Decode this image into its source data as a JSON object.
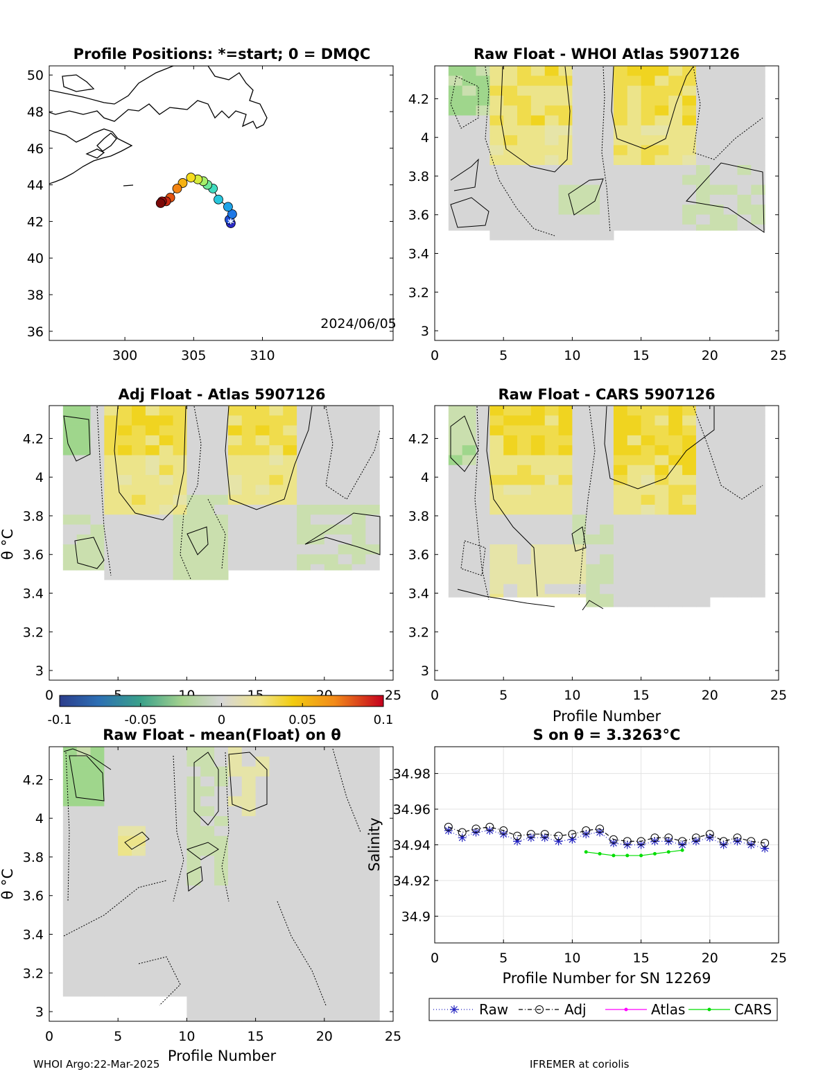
{
  "page": {
    "footer_left": "WHOI Argo:22-Mar-2025",
    "footer_right": "IFREMER at coriolis",
    "xlabel_common": "Profile Number",
    "theta_label": "θ °C"
  },
  "map": {
    "title": "Profile Positions: *=start; 0 = DMQC",
    "date": "2024/06/05",
    "xticks": [
      "300",
      "305",
      "310"
    ],
    "yticks": [
      "36",
      "38",
      "40",
      "42",
      "44",
      "46",
      "48",
      "50"
    ],
    "xlim": [
      294.5,
      319.5
    ],
    "ylim": [
      35.5,
      50.5
    ],
    "track": [
      {
        "lon": 307.7,
        "lat": 41.9
      },
      {
        "lon": 307.6,
        "lat": 42.1
      },
      {
        "lon": 307.8,
        "lat": 42.4
      },
      {
        "lon": 307.5,
        "lat": 42.8
      },
      {
        "lon": 306.8,
        "lat": 43.2
      },
      {
        "lon": 306.4,
        "lat": 43.8
      },
      {
        "lon": 306.0,
        "lat": 44.0
      },
      {
        "lon": 305.7,
        "lat": 44.2
      },
      {
        "lon": 305.3,
        "lat": 44.3
      },
      {
        "lon": 304.8,
        "lat": 44.4
      },
      {
        "lon": 304.2,
        "lat": 44.1
      },
      {
        "lon": 303.8,
        "lat": 43.8
      },
      {
        "lon": 303.3,
        "lat": 43.3
      },
      {
        "lon": 303.0,
        "lat": 43.1
      },
      {
        "lon": 302.7,
        "lat": 43.1
      },
      {
        "lon": 302.6,
        "lat": 43.0
      }
    ]
  },
  "panels": {
    "p2": {
      "title": "Raw Float - WHOI Atlas  5907126",
      "xlabel": "",
      "ylabel": ""
    },
    "p3": {
      "title": "Adj Float - Atlas  5907126",
      "xlabel": "",
      "ylabel": "θ °C"
    },
    "p4": {
      "title": "Raw Float - CARS  5907126",
      "xlabel": "Profile Number",
      "ylabel": ""
    },
    "p5": {
      "title": "Raw Float - mean(Float) on θ",
      "xlabel": "Profile Number",
      "ylabel": "θ °C"
    },
    "p6": {
      "title": "S on θ = 3.3263°C",
      "xlabel": "Profile Number for SN 12269",
      "ylabel": "Salinity"
    }
  },
  "contour_axes": {
    "xticks": [
      "0",
      "5",
      "10",
      "15",
      "20",
      "25"
    ],
    "yticks": [
      "3",
      "3.2",
      "3.4",
      "3.6",
      "3.8",
      "4",
      "4.2"
    ],
    "xlim": [
      0,
      25
    ],
    "ylim": [
      2.95,
      4.37
    ]
  },
  "colorbar": {
    "ticks": [
      "-0.1",
      "-0.05",
      "0",
      "0.05",
      "0.1"
    ],
    "range": [
      -0.1,
      0.1
    ]
  },
  "legend": {
    "items": [
      {
        "label": "Raw",
        "color": "#1f1fbf"
      },
      {
        "label": "Adj",
        "color": "#000000"
      },
      {
        "label": "Atlas",
        "color": "#ff00ff"
      },
      {
        "label": "CARS",
        "color": "#00dd00"
      }
    ]
  },
  "chart_data": {
    "type": "line",
    "title": "S on θ = 3.3263°C",
    "xlabel": "Profile Number for SN 12269",
    "ylabel": "Salinity",
    "xlim": [
      0,
      25
    ],
    "ylim": [
      34.885,
      34.995
    ],
    "xticks": [
      "0",
      "5",
      "10",
      "15",
      "20",
      "25"
    ],
    "yticks": [
      "34.9",
      "34.92",
      "34.94",
      "34.96",
      "34.98"
    ],
    "grid": true,
    "legend_position": "bottom",
    "series": [
      {
        "name": "Raw",
        "x": [
          1,
          2,
          3,
          4,
          5,
          6,
          7,
          8,
          9,
          10,
          11,
          12,
          13,
          14,
          15,
          16,
          17,
          18,
          19,
          20,
          21,
          22,
          23,
          24
        ],
        "values": [
          34.948,
          34.944,
          34.947,
          34.948,
          34.946,
          34.942,
          34.944,
          34.944,
          34.942,
          34.943,
          34.946,
          34.947,
          34.941,
          34.94,
          34.94,
          34.942,
          34.942,
          34.94,
          34.942,
          34.944,
          34.94,
          34.942,
          34.94,
          34.938
        ]
      },
      {
        "name": "Adj",
        "x": [
          1,
          2,
          3,
          4,
          5,
          6,
          7,
          8,
          9,
          10,
          11,
          12,
          13,
          14,
          15,
          16,
          17,
          18,
          19,
          20,
          21,
          22,
          23,
          24
        ],
        "values": [
          34.95,
          34.947,
          34.949,
          34.95,
          34.948,
          34.945,
          34.946,
          34.946,
          34.945,
          34.946,
          34.948,
          34.949,
          34.943,
          34.942,
          34.942,
          34.944,
          34.944,
          34.942,
          34.944,
          34.946,
          34.942,
          34.944,
          34.942,
          34.941
        ]
      },
      {
        "name": "Atlas",
        "x": [],
        "values": []
      },
      {
        "name": "CARS",
        "x": [
          11,
          12,
          13,
          14,
          15,
          16,
          17,
          18
        ],
        "values": [
          34.936,
          34.935,
          34.934,
          34.934,
          34.934,
          34.935,
          34.936,
          34.937
        ]
      }
    ]
  }
}
